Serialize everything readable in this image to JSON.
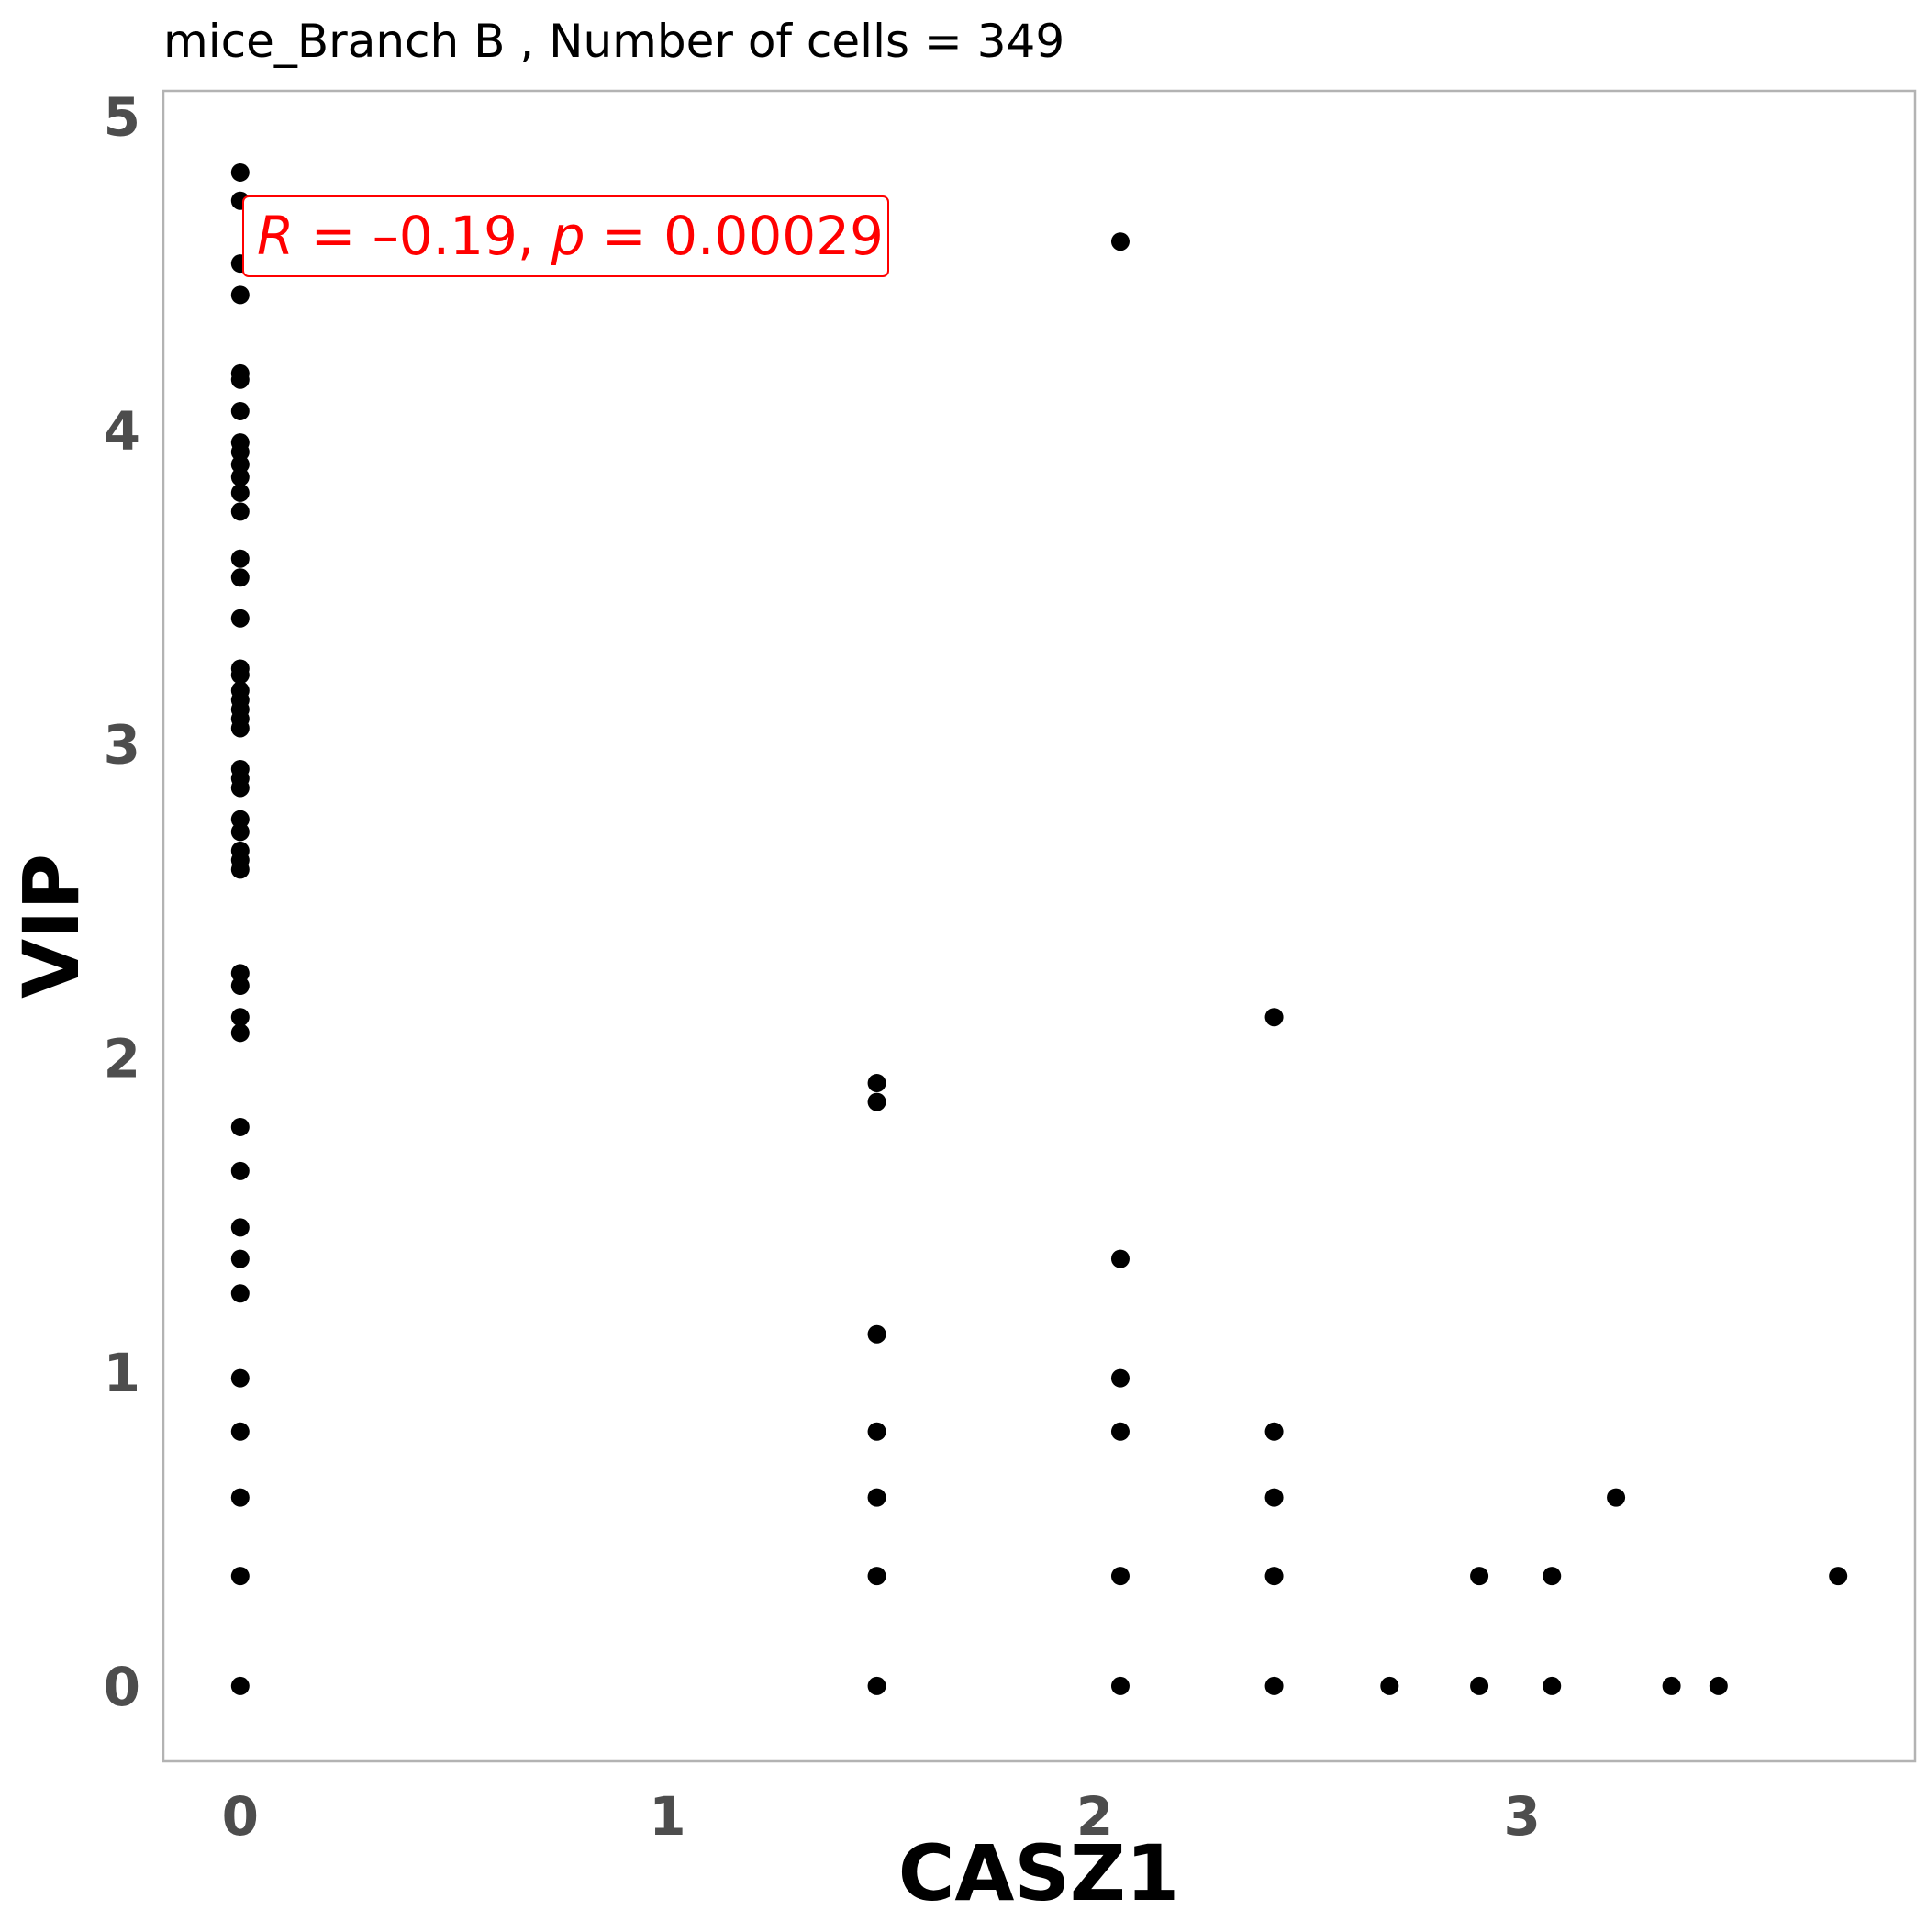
{
  "chart_data": {
    "type": "scatter",
    "title": "mice_Branch B , Number of cells =  349",
    "xlabel": "CASZ1",
    "ylabel": "VIP",
    "xlim": [
      -0.18,
      3.92
    ],
    "ylim": [
      -0.24,
      5.08
    ],
    "xticks": [
      0,
      1,
      2,
      3
    ],
    "yticks": [
      0,
      1,
      2,
      3,
      4,
      5
    ],
    "grid": false,
    "point_color": "#000000",
    "annotation": {
      "R_symbol": "R",
      "R_value": " = –0.19, ",
      "p_symbol": "p",
      "p_value": " = 0.00029",
      "color": "#ff0000"
    },
    "points": [
      {
        "x": 0,
        "y": 4.82
      },
      {
        "x": 0,
        "y": 4.73
      },
      {
        "x": 0,
        "y": 4.53
      },
      {
        "x": 0,
        "y": 4.43
      },
      {
        "x": 0,
        "y": 4.18
      },
      {
        "x": 0,
        "y": 4.16
      },
      {
        "x": 0,
        "y": 4.06
      },
      {
        "x": 0,
        "y": 3.96
      },
      {
        "x": 0,
        "y": 3.93
      },
      {
        "x": 0,
        "y": 3.89
      },
      {
        "x": 0,
        "y": 3.85
      },
      {
        "x": 0,
        "y": 3.8
      },
      {
        "x": 0,
        "y": 3.74
      },
      {
        "x": 0,
        "y": 3.59
      },
      {
        "x": 0,
        "y": 3.53
      },
      {
        "x": 0,
        "y": 3.4
      },
      {
        "x": 0,
        "y": 3.24
      },
      {
        "x": 0,
        "y": 3.22
      },
      {
        "x": 0,
        "y": 3.17
      },
      {
        "x": 0,
        "y": 3.14
      },
      {
        "x": 0,
        "y": 3.11
      },
      {
        "x": 0,
        "y": 3.08
      },
      {
        "x": 0,
        "y": 3.05
      },
      {
        "x": 0,
        "y": 2.92
      },
      {
        "x": 0,
        "y": 2.89
      },
      {
        "x": 0,
        "y": 2.86
      },
      {
        "x": 0,
        "y": 2.76
      },
      {
        "x": 0,
        "y": 2.72
      },
      {
        "x": 0,
        "y": 2.66
      },
      {
        "x": 0,
        "y": 2.63
      },
      {
        "x": 0,
        "y": 2.6
      },
      {
        "x": 0,
        "y": 2.27
      },
      {
        "x": 0,
        "y": 2.23
      },
      {
        "x": 0,
        "y": 2.13
      },
      {
        "x": 0,
        "y": 2.08
      },
      {
        "x": 0,
        "y": 1.78
      },
      {
        "x": 0,
        "y": 1.64
      },
      {
        "x": 0,
        "y": 1.46
      },
      {
        "x": 0,
        "y": 1.36
      },
      {
        "x": 0,
        "y": 1.25
      },
      {
        "x": 0,
        "y": 0.98
      },
      {
        "x": 0,
        "y": 0.81
      },
      {
        "x": 0,
        "y": 0.6
      },
      {
        "x": 0,
        "y": 0.35
      },
      {
        "x": 0,
        "y": 0.0
      },
      {
        "x": 1.49,
        "y": 1.92
      },
      {
        "x": 1.49,
        "y": 1.86
      },
      {
        "x": 1.49,
        "y": 1.12
      },
      {
        "x": 1.49,
        "y": 0.81
      },
      {
        "x": 1.49,
        "y": 0.6
      },
      {
        "x": 1.49,
        "y": 0.35
      },
      {
        "x": 1.49,
        "y": 0.0
      },
      {
        "x": 2.06,
        "y": 4.6
      },
      {
        "x": 2.06,
        "y": 1.36
      },
      {
        "x": 2.06,
        "y": 0.98
      },
      {
        "x": 2.06,
        "y": 0.81
      },
      {
        "x": 2.06,
        "y": 0.35
      },
      {
        "x": 2.06,
        "y": 0.0
      },
      {
        "x": 2.42,
        "y": 2.13
      },
      {
        "x": 2.42,
        "y": 0.81
      },
      {
        "x": 2.42,
        "y": 0.6
      },
      {
        "x": 2.42,
        "y": 0.35
      },
      {
        "x": 2.42,
        "y": 0.0
      },
      {
        "x": 2.69,
        "y": 0.0
      },
      {
        "x": 2.9,
        "y": 0.35
      },
      {
        "x": 2.9,
        "y": 0.0
      },
      {
        "x": 3.07,
        "y": 0.35
      },
      {
        "x": 3.07,
        "y": 0.0
      },
      {
        "x": 3.22,
        "y": 0.6
      },
      {
        "x": 3.35,
        "y": 0.0
      },
      {
        "x": 3.46,
        "y": 0.0
      },
      {
        "x": 3.74,
        "y": 0.35
      }
    ]
  }
}
